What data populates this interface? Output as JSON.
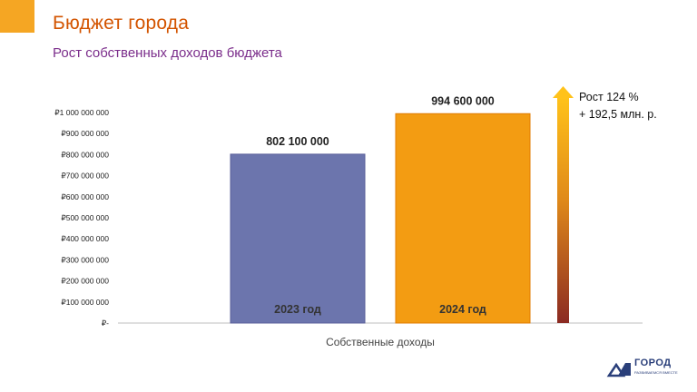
{
  "header": {
    "title": "Бюджет города",
    "subtitle": "Рост собственных доходов бюджета"
  },
  "growth": {
    "line1": "Рост  124 %",
    "line2": "+ 192,5 млн. р."
  },
  "logo": {
    "text": "ГОРОД",
    "sub": "РАЗВИВАЕМСЯ ВМЕСТЕ"
  },
  "colors": {
    "accent": "#f5a623",
    "title": "#d35400",
    "subtitle": "#7b2d8b",
    "bar_2023": "#6c75ad",
    "bar_2024": "#f39c12"
  },
  "chart_data": {
    "type": "bar",
    "xlabel": "Собственные доходы",
    "ylim": [
      0,
      1000000000
    ],
    "yticks": [
      {
        "value": 0,
        "label": "₽-"
      },
      {
        "value": 100000000,
        "label": "₽100 000 000"
      },
      {
        "value": 200000000,
        "label": "₽200 000 000"
      },
      {
        "value": 300000000,
        "label": "₽300 000 000"
      },
      {
        "value": 400000000,
        "label": "₽400 000 000"
      },
      {
        "value": 500000000,
        "label": "₽500 000 000"
      },
      {
        "value": 600000000,
        "label": "₽600 000 000"
      },
      {
        "value": 700000000,
        "label": "₽700 000 000"
      },
      {
        "value": 800000000,
        "label": "₽800 000 000"
      },
      {
        "value": 900000000,
        "label": "₽900 000 000"
      },
      {
        "value": 1000000000,
        "label": "₽1 000 000 000"
      }
    ],
    "bars": [
      {
        "category": "2023 год",
        "value": 802100000,
        "label": "802 100 000",
        "color": "#6c75ad"
      },
      {
        "category": "2024 год",
        "value": 994600000,
        "label": "994 600 000",
        "color": "#f39c12"
      }
    ]
  }
}
